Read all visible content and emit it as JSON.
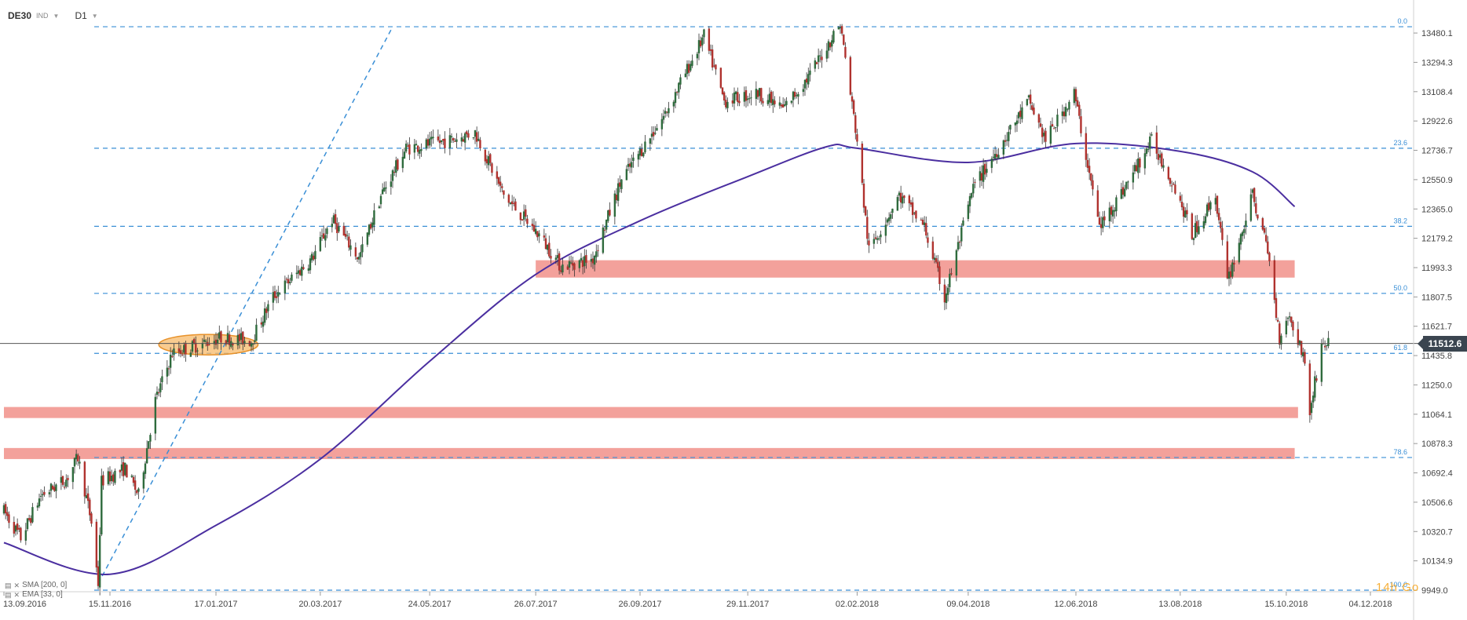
{
  "toolbar": {
    "symbol": "DE30",
    "symbol_tag": "IND",
    "timeframe": "D1"
  },
  "indicators": [
    {
      "label": "SMA [200, 0]",
      "icon": "line-settings-icon"
    },
    {
      "label": "EMA [33, 0]",
      "icon": "line-settings-icon"
    }
  ],
  "logo": "14h Go",
  "colors": {
    "bull": "#2f6b3d",
    "bear": "#b0322e",
    "fib_line": "#3a8fd6",
    "zone": "#f1908a",
    "moving_average": "#4b2fa0",
    "ellipse_fill": "#f7b96a",
    "ellipse_stroke": "#e8922a",
    "price_badge": "#3b4550"
  },
  "chart_data": {
    "type": "candlestick",
    "instrument": "DE30",
    "timeframe": "D1",
    "x_start": "13.09.2016",
    "x_end": "04.12.2018",
    "ylim": [
      9949.0,
      13570.0
    ],
    "y_ticks": [
      "13480.1",
      "13294.3",
      "13108.4",
      "12922.6",
      "12736.7",
      "12550.9",
      "12365.0",
      "12179.2",
      "11993.3",
      "11807.5",
      "11621.7",
      "11435.8",
      "11250.0",
      "11064.1",
      "10878.3",
      "10692.4",
      "10506.6",
      "10320.7",
      "10134.9",
      "9949.0"
    ],
    "x_ticks": [
      "13.09.2016",
      "15.11.2016",
      "17.01.2017",
      "20.03.2017",
      "24.05.2017",
      "26.07.2017",
      "26.09.2017",
      "29.11.2017",
      "02.02.2018",
      "09.04.2018",
      "12.06.2018",
      "13.08.2018",
      "15.10.2018",
      "04.12.2018"
    ],
    "current_price": "11512.6",
    "fibonacci": [
      {
        "label": "0.0",
        "value": 13520
      },
      {
        "label": "23.6",
        "value": 12750
      },
      {
        "label": "38.2",
        "value": 12255
      },
      {
        "label": "50.0",
        "value": 11830
      },
      {
        "label": "61.8",
        "value": 11450
      },
      {
        "label": "78.6",
        "value": 10790
      },
      {
        "label": "100.0",
        "value": 9949
      }
    ],
    "zones": [
      {
        "from_date": "26.07.2017",
        "to_date": "20.10.2018",
        "low": 11930,
        "high": 12040
      },
      {
        "from_date": "13.09.2016",
        "to_date": "22.10.2018",
        "low": 11040,
        "high": 11110
      },
      {
        "from_date": "13.09.2016",
        "to_date": "20.10.2018",
        "low": 10780,
        "high": 10850
      }
    ],
    "highlight_ellipse": {
      "from_date": "14.12.2016",
      "to_date": "11.02.2017",
      "low": 11450,
      "high": 11560
    },
    "trendline": {
      "from": {
        "date": "08.11.2016",
        "value": 9990
      },
      "to": {
        "date": "02.05.2017",
        "value": 13520
      }
    },
    "sma200": [
      {
        "date": "13.09.2016",
        "value": 10250
      },
      {
        "date": "15.11.2016",
        "value": 10050
      },
      {
        "date": "17.01.2017",
        "value": 10360
      },
      {
        "date": "20.03.2017",
        "value": 10780
      },
      {
        "date": "24.05.2017",
        "value": 11400
      },
      {
        "date": "26.07.2017",
        "value": 11950
      },
      {
        "date": "26.09.2017",
        "value": 12290
      },
      {
        "date": "29.11.2017",
        "value": 12570
      },
      {
        "date": "15.01.2018",
        "value": 12760
      },
      {
        "date": "02.02.2018",
        "value": 12750
      },
      {
        "date": "09.04.2018",
        "value": 12660
      },
      {
        "date": "12.06.2018",
        "value": 12780
      },
      {
        "date": "13.08.2018",
        "value": 12730
      },
      {
        "date": "25.09.2018",
        "value": 12600
      },
      {
        "date": "20.10.2018",
        "value": 12380
      }
    ],
    "price_path": [
      {
        "date": "13.09.2016",
        "value": 10450
      },
      {
        "date": "23.09.2016",
        "value": 10280
      },
      {
        "date": "05.10.2016",
        "value": 10550
      },
      {
        "date": "20.10.2016",
        "value": 10650
      },
      {
        "date": "27.10.2016",
        "value": 10790
      },
      {
        "date": "04.11.2016",
        "value": 10380
      },
      {
        "date": "08.11.2016",
        "value": 9990
      },
      {
        "date": "10.11.2016",
        "value": 10640
      },
      {
        "date": "24.11.2016",
        "value": 10720
      },
      {
        "date": "02.12.2016",
        "value": 10550
      },
      {
        "date": "12.12.2016",
        "value": 11150
      },
      {
        "date": "22.12.2016",
        "value": 11450
      },
      {
        "date": "20.01.2017",
        "value": 11550
      },
      {
        "date": "07.02.2017",
        "value": 11530
      },
      {
        "date": "20.02.2017",
        "value": 11810
      },
      {
        "date": "15.03.2017",
        "value": 12050
      },
      {
        "date": "27.03.2017",
        "value": 12300
      },
      {
        "date": "12.04.2017",
        "value": 12050
      },
      {
        "date": "25.04.2017",
        "value": 12450
      },
      {
        "date": "10.05.2017",
        "value": 12750
      },
      {
        "date": "05.06.2017",
        "value": 12800
      },
      {
        "date": "20.06.2017",
        "value": 12850
      },
      {
        "date": "07.07.2017",
        "value": 12450
      },
      {
        "date": "28.07.2017",
        "value": 12200
      },
      {
        "date": "10.08.2017",
        "value": 12000
      },
      {
        "date": "29.08.2017",
        "value": 12050
      },
      {
        "date": "15.09.2017",
        "value": 12550
      },
      {
        "date": "10.10.2017",
        "value": 12950
      },
      {
        "date": "03.11.2017",
        "value": 13460
      },
      {
        "date": "15.11.2017",
        "value": 13050
      },
      {
        "date": "05.12.2017",
        "value": 13100
      },
      {
        "date": "20.12.2017",
        "value": 13000
      },
      {
        "date": "04.01.2018",
        "value": 13200
      },
      {
        "date": "23.01.2018",
        "value": 13540
      },
      {
        "date": "02.02.2018",
        "value": 12800
      },
      {
        "date": "09.02.2018",
        "value": 12100
      },
      {
        "date": "27.02.2018",
        "value": 12450
      },
      {
        "date": "14.03.2018",
        "value": 12250
      },
      {
        "date": "26.03.2018",
        "value": 11800
      },
      {
        "date": "12.04.2018",
        "value": 12500
      },
      {
        "date": "15.05.2018",
        "value": 13050
      },
      {
        "date": "25.05.2018",
        "value": 12800
      },
      {
        "date": "11.06.2018",
        "value": 13100
      },
      {
        "date": "26.06.2018",
        "value": 12250
      },
      {
        "date": "11.07.2018",
        "value": 12500
      },
      {
        "date": "27.07.2018",
        "value": 12800
      },
      {
        "date": "10.08.2018",
        "value": 12500
      },
      {
        "date": "20.08.2018",
        "value": 12200
      },
      {
        "date": "03.09.2018",
        "value": 12450
      },
      {
        "date": "10.09.2018",
        "value": 11900
      },
      {
        "date": "25.09.2018",
        "value": 12450
      },
      {
        "date": "04.10.2018",
        "value": 12100
      },
      {
        "date": "11.10.2018",
        "value": 11550
      },
      {
        "date": "16.10.2018",
        "value": 11700
      },
      {
        "date": "25.10.2018",
        "value": 11450
      },
      {
        "date": "29.10.2018",
        "value": 11080
      },
      {
        "date": "05.11.2018",
        "value": 11500
      },
      {
        "date": "09.11.2018",
        "value": 11520
      }
    ]
  }
}
